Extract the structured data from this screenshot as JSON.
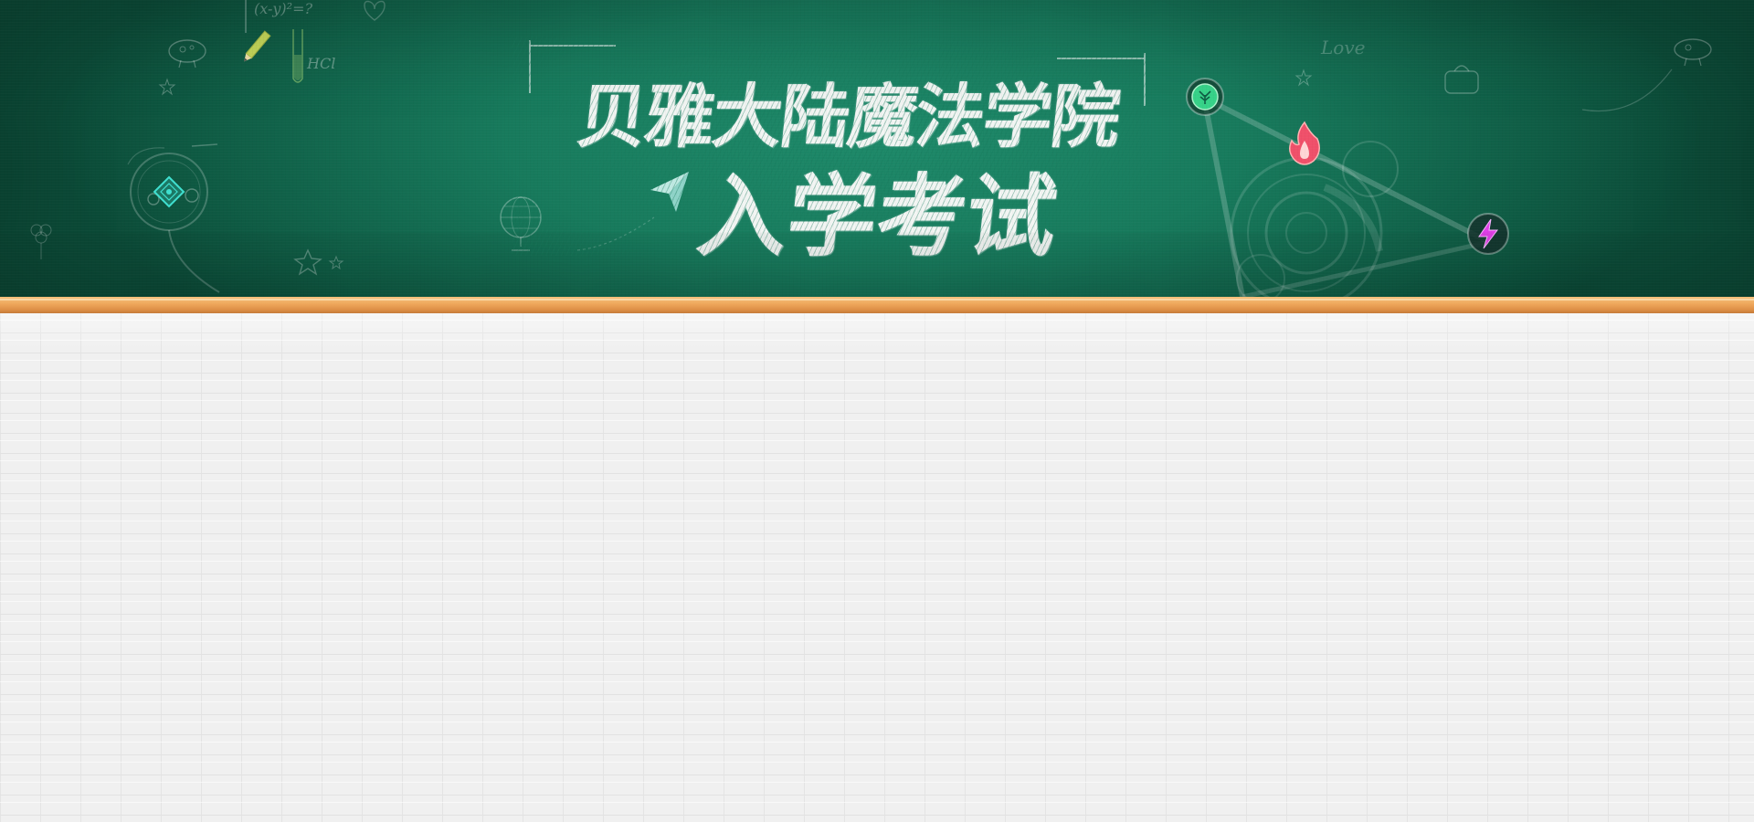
{
  "banner": {
    "title_line1": "贝雅大陆魔法学院",
    "title_line2": "入学考试"
  },
  "doodles": {
    "formula": "(x-y)²=?",
    "chem": "HCl",
    "love": "Love"
  },
  "icons": {
    "nature_emblem": "tree-emblem-icon",
    "fire_emblem": "fire-emblem-icon",
    "lightning_emblem": "lightning-emblem-icon",
    "diamond_emblem": "diamond-emblem-icon",
    "paper_plane": "paper-plane-icon",
    "pencil": "pencil-icon",
    "globe": "globe-icon"
  },
  "colors": {
    "board": "#177a5c",
    "ledge": "#eea65a",
    "wall": "#f0f0f0",
    "chalk": "#f2f5f3",
    "nature": "#37d48a",
    "fire": "#f0506a",
    "lightning": "#e040e8",
    "diamond": "#3fe0d0"
  }
}
